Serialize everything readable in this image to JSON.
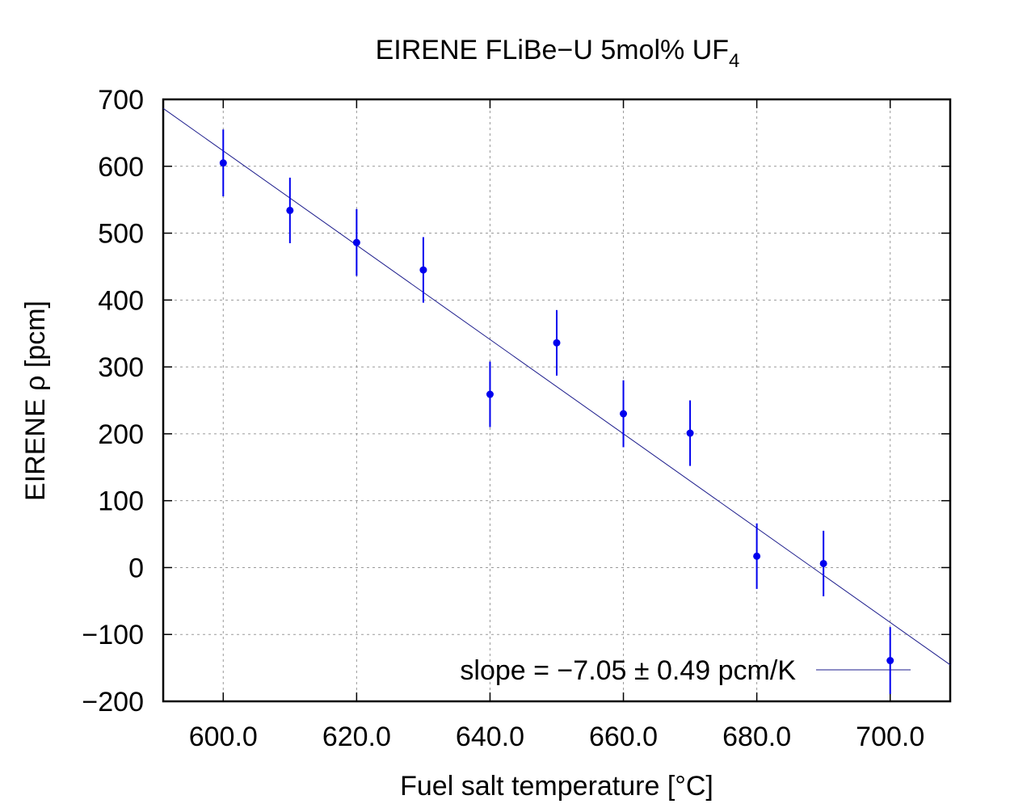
{
  "chart_data": {
    "type": "scatter",
    "title": "EIRENE FLiBe−U 5mol% UF",
    "title_subscript": "4",
    "xlabel": "Fuel salt temperature [°C]",
    "ylabel": "EIRENE ρ [pcm]",
    "xlim": [
      591,
      709
    ],
    "ylim": [
      -200,
      700
    ],
    "x_ticks": [
      600,
      620,
      640,
      660,
      680,
      700
    ],
    "x_tick_labels": [
      "600.0",
      "620.0",
      "640.0",
      "660.0",
      "680.0",
      "700.0"
    ],
    "y_ticks": [
      -200,
      -100,
      0,
      100,
      200,
      300,
      400,
      500,
      600,
      700
    ],
    "y_tick_labels": [
      "−200",
      "−100",
      "0",
      "100",
      "200",
      "300",
      "400",
      "500",
      "600",
      "700"
    ],
    "grid": true,
    "legend_position": "bottom-right",
    "legend_label": "slope = −7.05 ±  0.49 pcm/K",
    "colors": {
      "points": "#0000ee",
      "fit": "#1c1c8c",
      "grid": "#999999",
      "frame": "#000000"
    },
    "series": [
      {
        "x": [
          600,
          610,
          620,
          630,
          640,
          650,
          660,
          670,
          680,
          690,
          700
        ],
        "y": [
          605,
          534,
          486,
          445,
          259,
          336,
          230,
          201,
          17,
          6,
          -139
        ],
        "error": [
          50,
          49,
          50,
          49,
          49,
          49,
          50,
          49,
          49,
          49,
          50
        ]
      }
    ],
    "fit_line": {
      "slope": -7.05,
      "intercept": 4853
    }
  }
}
